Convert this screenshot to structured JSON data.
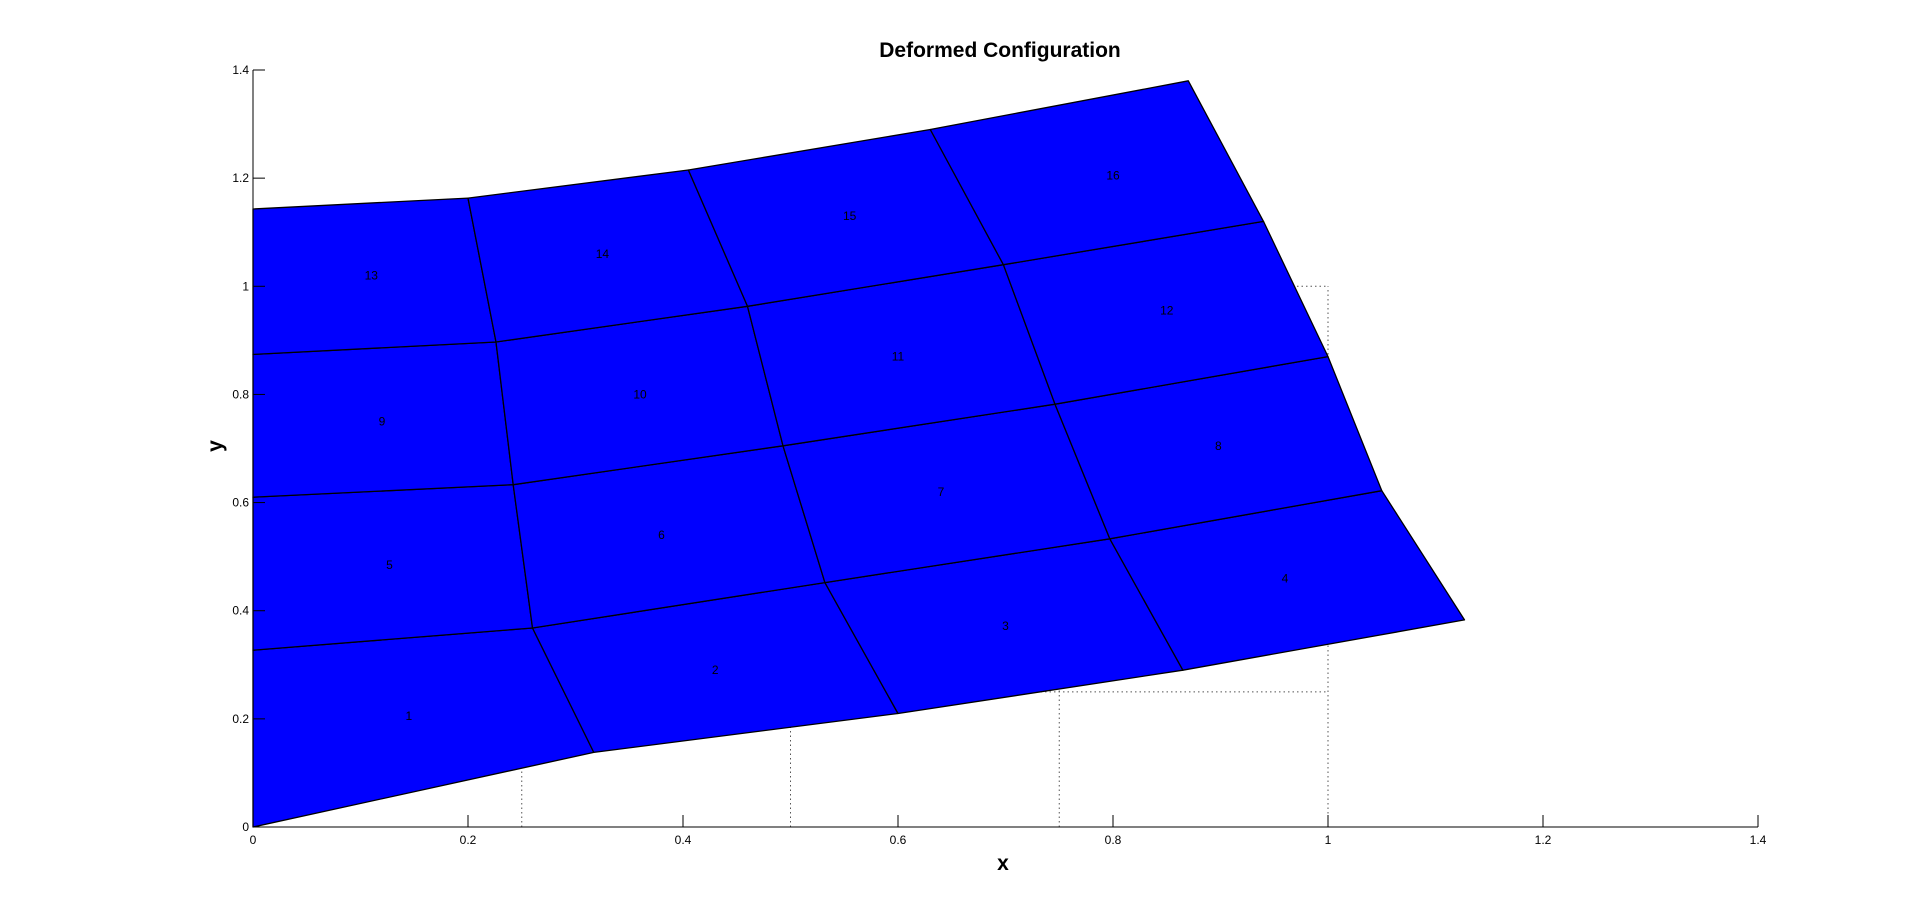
{
  "chart_data": {
    "type": "mesh",
    "title": "Deformed Configuration",
    "xlabel": "x",
    "ylabel": "y",
    "xlim": [
      0,
      1.4
    ],
    "ylim": [
      0,
      1.4
    ],
    "xticks": [
      "0",
      "0.2",
      "0.4",
      "0.6",
      "0.8",
      "1",
      "1.2",
      "1.4"
    ],
    "yticks": [
      "0",
      "0.2",
      "0.4",
      "0.6",
      "0.8",
      "1",
      "1.2",
      "1.4"
    ],
    "grid": false,
    "fill_color": "#0000ff",
    "edge_color": "#000000",
    "undeformed_color": "#555555",
    "nodes": [
      [
        [
          0.0,
          0.0
        ],
        [
          0.317,
          0.138
        ],
        [
          0.6,
          0.21
        ],
        [
          0.865,
          0.29
        ],
        [
          1.127,
          0.383
        ]
      ],
      [
        [
          0.0,
          0.327
        ],
        [
          0.26,
          0.368
        ],
        [
          0.532,
          0.452
        ],
        [
          0.797,
          0.533
        ],
        [
          1.05,
          0.622
        ]
      ],
      [
        [
          0.0,
          0.61
        ],
        [
          0.242,
          0.633
        ],
        [
          0.493,
          0.705
        ],
        [
          0.746,
          0.782
        ],
        [
          1.0,
          0.87
        ]
      ],
      [
        [
          0.0,
          0.874
        ],
        [
          0.226,
          0.897
        ],
        [
          0.46,
          0.963
        ],
        [
          0.698,
          1.04
        ],
        [
          0.94,
          1.12
        ]
      ],
      [
        [
          0.0,
          1.143
        ],
        [
          0.2,
          1.163
        ],
        [
          0.405,
          1.215
        ],
        [
          0.63,
          1.29
        ],
        [
          0.87,
          1.38
        ]
      ]
    ],
    "element_labels": [
      {
        "text": "1",
        "x": 0.145,
        "y": 0.205
      },
      {
        "text": "2",
        "x": 0.43,
        "y": 0.29
      },
      {
        "text": "3",
        "x": 0.7,
        "y": 0.372
      },
      {
        "text": "4",
        "x": 0.96,
        "y": 0.46
      },
      {
        "text": "5",
        "x": 0.127,
        "y": 0.485
      },
      {
        "text": "6",
        "x": 0.38,
        "y": 0.54
      },
      {
        "text": "7",
        "x": 0.64,
        "y": 0.62
      },
      {
        "text": "8",
        "x": 0.898,
        "y": 0.705
      },
      {
        "text": "9",
        "x": 0.12,
        "y": 0.75
      },
      {
        "text": "10",
        "x": 0.36,
        "y": 0.8
      },
      {
        "text": "11",
        "x": 0.6,
        "y": 0.87
      },
      {
        "text": "12",
        "x": 0.85,
        "y": 0.955
      },
      {
        "text": "13",
        "x": 0.11,
        "y": 1.02
      },
      {
        "text": "14",
        "x": 0.325,
        "y": 1.06
      },
      {
        "text": "15",
        "x": 0.555,
        "y": 1.13
      },
      {
        "text": "16",
        "x": 0.8,
        "y": 1.205
      }
    ],
    "undeformed_grid": {
      "x": [
        0,
        0.25,
        0.5,
        0.75,
        1.0
      ],
      "y": [
        0,
        0.25,
        0.5,
        0.75,
        1.0
      ]
    }
  }
}
